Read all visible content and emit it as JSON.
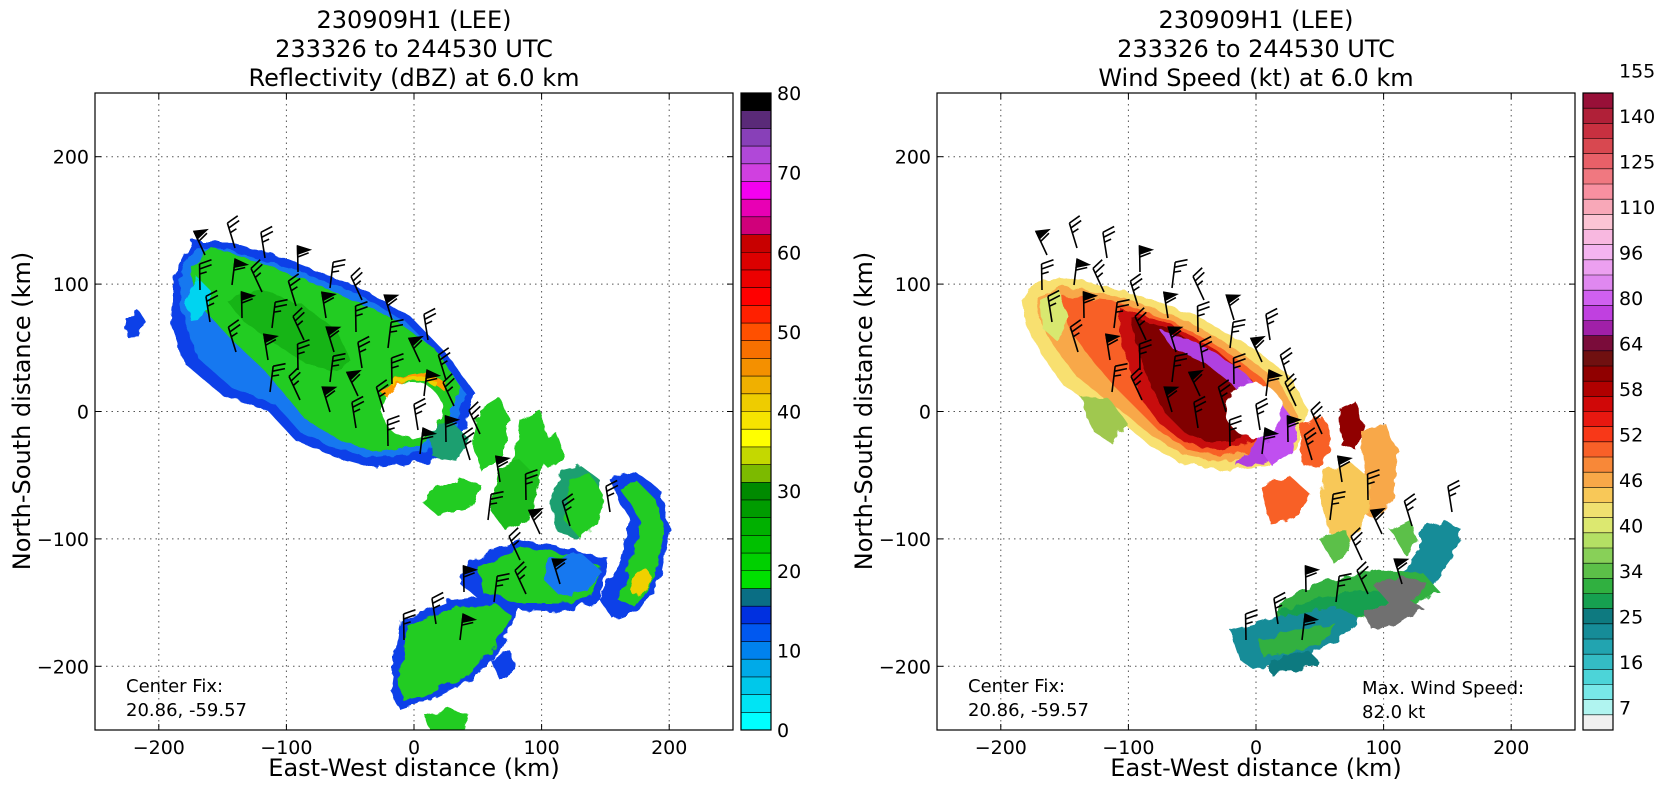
{
  "chart_data": [
    {
      "type": "heatmap",
      "title_lines": [
        "230909H1 (LEE)",
        "233326 to 244530 UTC",
        "Reflectivity (dBZ) at 6.0 km"
      ],
      "xlabel": "East-West distance (km)",
      "ylabel": "North-South distance (km)",
      "xlim": [
        -250,
        250
      ],
      "ylim": [
        -250,
        250
      ],
      "xticks": [
        -200,
        -100,
        0,
        100,
        200
      ],
      "yticks": [
        -200,
        -100,
        0,
        100,
        200
      ],
      "xtick_labels": [
        "−200",
        "−100",
        "0",
        "100",
        "200"
      ],
      "ytick_labels": [
        "−200",
        "−100",
        "0",
        "100",
        "200"
      ],
      "grid": true,
      "annotation_lines": [
        "Center Fix:",
        "20.86, -59.57"
      ],
      "colorbar": {
        "min": 0,
        "max": 80,
        "ticks": [
          0,
          10,
          20,
          30,
          40,
          50,
          60,
          70,
          80
        ],
        "tick_labels": [
          "0",
          "10",
          "20",
          "30",
          "40",
          "50",
          "60",
          "70",
          "80"
        ],
        "colors": [
          "#00ffff",
          "#00e4f4",
          "#00c8ea",
          "#00aae8",
          "#0082ee",
          "#0058f0",
          "#0030e0",
          "#0a6e84",
          "#00e000",
          "#00d000",
          "#00c000",
          "#00b000",
          "#009c00",
          "#008a00",
          "#7cba00",
          "#c4d800",
          "#ffff00",
          "#f6e400",
          "#eecc00",
          "#f0b000",
          "#f49000",
          "#f87000",
          "#ff5000",
          "#ff2000",
          "#ff0000",
          "#ec0000",
          "#dc0000",
          "#c80000",
          "#d0007a",
          "#e800b4",
          "#f400f0",
          "#d040e0",
          "#b048d8",
          "#8840b8",
          "#5a2a78",
          "#000000"
        ]
      },
      "wind_barbs": "black"
    },
    {
      "type": "heatmap",
      "title_lines": [
        "230909H1 (LEE)",
        "233326 to 244530 UTC",
        "Wind Speed (kt) at 6.0 km"
      ],
      "xlabel": "East-West distance (km)",
      "ylabel": "North-South distance (km)",
      "xlim": [
        -250,
        250
      ],
      "ylim": [
        -250,
        250
      ],
      "xticks": [
        -200,
        -100,
        0,
        100,
        200
      ],
      "yticks": [
        -200,
        -100,
        0,
        100,
        200
      ],
      "xtick_labels": [
        "−200",
        "−100",
        "0",
        "100",
        "200"
      ],
      "ytick_labels": [
        "−200",
        "−100",
        "0",
        "100",
        "200"
      ],
      "grid": true,
      "annotation_lines": [
        "Center Fix:",
        "20.86, -59.57"
      ],
      "max_wind_lines": [
        "Max. Wind Speed:",
        "82.0 kt"
      ],
      "colorbar": {
        "ticks_labels": [
          "7",
          "16",
          "25",
          "34",
          "40",
          "46",
          "52",
          "58",
          "64",
          "80",
          "96",
          "110",
          "125",
          "140",
          "155"
        ],
        "colors": [
          "#f0f0f0",
          "#b0f4f0",
          "#78e8e8",
          "#4cd4d8",
          "#34bcc4",
          "#22a4b0",
          "#168c98",
          "#0e7a80",
          "#16a050",
          "#30b040",
          "#5cc048",
          "#88d058",
          "#b4e064",
          "#dce870",
          "#f0e070",
          "#f8c858",
          "#f8a848",
          "#f88838",
          "#f86028",
          "#f83818",
          "#e81810",
          "#d00808",
          "#b00000",
          "#900000",
          "#701010",
          "#7a0c3a",
          "#a020a8",
          "#c040e0",
          "#d060f0",
          "#e088f0",
          "#eca0f0",
          "#f4b4f0",
          "#f8b8e0",
          "#fcc4d4",
          "#f8a8b8",
          "#f890a0",
          "#f07880",
          "#e86068",
          "#d84850",
          "#c83040",
          "#b02038",
          "#981038"
        ]
      },
      "wind_barbs": "black"
    }
  ]
}
